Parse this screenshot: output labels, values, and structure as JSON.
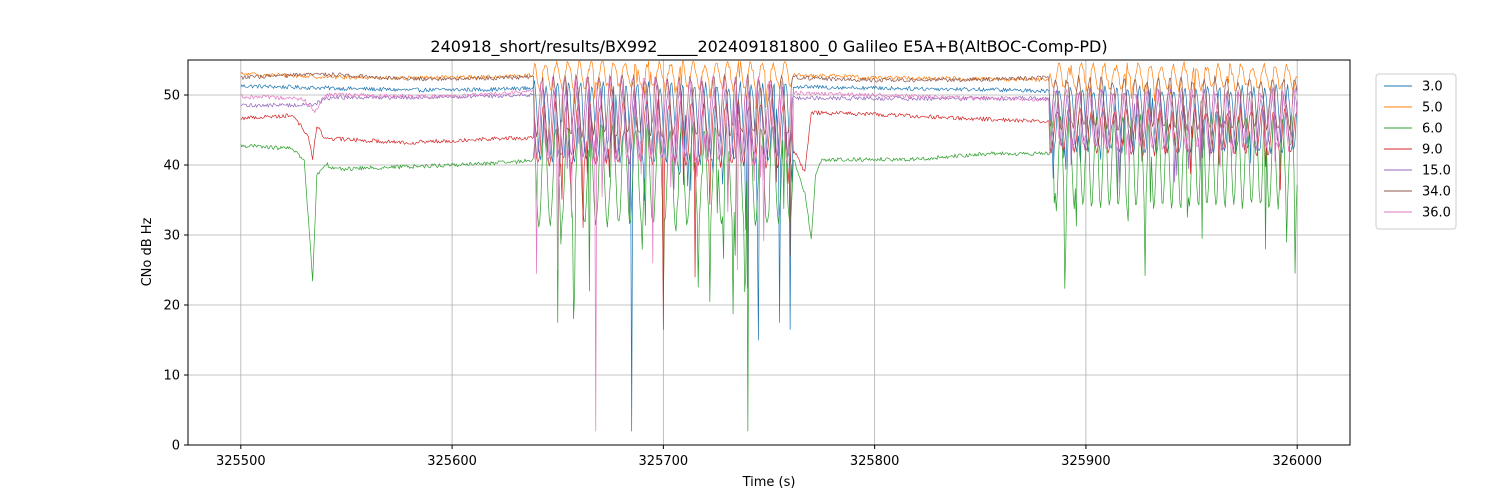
{
  "chart_data": {
    "type": "line",
    "title": "240918_short/results/BX992_____202409181800_0 Galileo E5A+B(AltBOC-Comp-PD)",
    "xlabel": "Time (s)",
    "ylabel": "CNo dB Hz",
    "xlim": [
      325475,
      326025
    ],
    "ylim": [
      0,
      55
    ],
    "xticks": [
      325500,
      325600,
      325700,
      325800,
      325900,
      326000
    ],
    "yticks": [
      0,
      10,
      20,
      30,
      40,
      50
    ],
    "grid": true,
    "legend_position": "upper-right-outside",
    "x_range": [
      325500,
      326000
    ],
    "series": [
      {
        "name": "3.0",
        "color": "#1f77b4",
        "base": [
          [
            325500,
            51.3
          ],
          [
            325540,
            51.0
          ],
          [
            325580,
            50.7
          ],
          [
            325620,
            50.8
          ],
          [
            325638,
            51.0
          ],
          [
            325760,
            51.2
          ],
          [
            325800,
            51.0
          ],
          [
            325850,
            50.8
          ],
          [
            325880,
            50.6
          ],
          [
            326000,
            50.6
          ]
        ],
        "osc": [
          [
            325639,
            325761,
            46.0,
            5.5,
            0.45,
            [
              [
                325685,
                2.0
              ],
              [
                325745,
                15.0
              ],
              [
                325755,
                17.5
              ],
              [
                325760,
                16.5
              ]
            ]
          ],
          [
            325883,
            326000,
            46.5,
            4.5,
            0.45,
            []
          ]
        ]
      },
      {
        "name": "5.0",
        "color": "#ff7f0e",
        "base": [
          [
            325500,
            53.0
          ],
          [
            325540,
            52.6
          ],
          [
            325580,
            52.4
          ],
          [
            325620,
            52.6
          ],
          [
            325638,
            52.8
          ],
          [
            325760,
            52.9
          ],
          [
            325800,
            52.5
          ],
          [
            325850,
            52.3
          ],
          [
            325880,
            52.2
          ],
          [
            326000,
            52.6
          ]
        ],
        "osc": [
          [
            325639,
            325761,
            52.8,
            1.8,
            0.45,
            []
          ],
          [
            325883,
            326000,
            52.6,
            1.6,
            0.45,
            []
          ]
        ]
      },
      {
        "name": "6.0",
        "color": "#2ca02c",
        "base": [
          [
            325500,
            42.8
          ],
          [
            325525,
            42.3
          ],
          [
            325530,
            40.5
          ],
          [
            325533,
            28.0
          ],
          [
            325534,
            23.7
          ],
          [
            325536,
            38.5
          ],
          [
            325540,
            40.2
          ],
          [
            325545,
            39.4
          ],
          [
            325600,
            40.0
          ],
          [
            325630,
            40.4
          ],
          [
            325638,
            40.8
          ],
          [
            325762,
            40.5
          ],
          [
            325767,
            36.0
          ],
          [
            325770,
            29.5
          ],
          [
            325772,
            38.5
          ],
          [
            325775,
            40.8
          ],
          [
            325820,
            40.8
          ],
          [
            325850,
            41.6
          ],
          [
            325882,
            41.6
          ],
          [
            326000,
            40.4
          ]
        ],
        "osc": [
          [
            325639,
            325761,
            38.5,
            7.0,
            0.45,
            [
              [
                325650,
                17.5
              ],
              [
                325665,
                22.0
              ],
              [
                325700,
                21.0
              ],
              [
                325722,
                20.5
              ],
              [
                325740,
                2.0
              ]
            ]
          ],
          [
            325883,
            326000,
            40.5,
            6.5,
            0.35,
            [
              [
                325920,
                32.0
              ],
              [
                325955,
                29.5
              ],
              [
                325985,
                28.0
              ],
              [
                325995,
                29.0
              ]
            ]
          ]
        ]
      },
      {
        "name": "9.0",
        "color": "#d62728",
        "base": [
          [
            325500,
            46.7
          ],
          [
            325525,
            47.1
          ],
          [
            325532,
            44.0
          ],
          [
            325534,
            41.0
          ],
          [
            325536,
            45.5
          ],
          [
            325540,
            43.8
          ],
          [
            325580,
            43.2
          ],
          [
            325620,
            43.8
          ],
          [
            325638,
            43.8
          ],
          [
            325762,
            42.0
          ],
          [
            325767,
            39.0
          ],
          [
            325770,
            47.5
          ],
          [
            325800,
            47.2
          ],
          [
            325850,
            46.6
          ],
          [
            325882,
            46.2
          ],
          [
            326000,
            46.7
          ]
        ],
        "osc": [
          [
            325639,
            325761,
            44.5,
            4.5,
            0.45,
            [
              [
                325700,
                16.5
              ],
              [
                325715,
                24.0
              ]
            ]
          ],
          [
            325883,
            326000,
            44.8,
            3.0,
            0.45,
            []
          ]
        ]
      },
      {
        "name": "15.0",
        "color": "#9467bd",
        "base": [
          [
            325500,
            48.5
          ],
          [
            325535,
            48.6
          ],
          [
            325540,
            49.6
          ],
          [
            325600,
            49.7
          ],
          [
            325638,
            50.0
          ],
          [
            325760,
            49.6
          ],
          [
            325800,
            49.5
          ],
          [
            325850,
            49.5
          ],
          [
            325882,
            49.5
          ],
          [
            326000,
            49.6
          ]
        ],
        "osc": [
          [
            325639,
            325761,
            46.0,
            5.0,
            0.45,
            [
              [
                325740,
                22.5
              ]
            ]
          ],
          [
            325883,
            326000,
            46.5,
            4.0,
            0.45,
            []
          ]
        ]
      },
      {
        "name": "34.0",
        "color": "#8c564b",
        "base": [
          [
            325500,
            52.5
          ],
          [
            325540,
            53.0
          ],
          [
            325580,
            52.3
          ],
          [
            325620,
            52.4
          ],
          [
            325638,
            52.6
          ],
          [
            325760,
            52.5
          ],
          [
            325800,
            52.1
          ],
          [
            325850,
            52.2
          ],
          [
            325882,
            52.5
          ],
          [
            326000,
            52.2
          ]
        ],
        "osc": [
          [
            325639,
            325761,
            48.5,
            4.0,
            0.45,
            [
              [
                325760,
                27.0
              ]
            ]
          ],
          [
            325883,
            326000,
            48.8,
            3.5,
            0.45,
            []
          ]
        ]
      },
      {
        "name": "36.0",
        "color": "#e377c2",
        "base": [
          [
            325500,
            49.8
          ],
          [
            325530,
            49.4
          ],
          [
            325535,
            47.5
          ],
          [
            325540,
            50.0
          ],
          [
            325600,
            49.8
          ],
          [
            325638,
            50.5
          ],
          [
            325760,
            50.3
          ],
          [
            325800,
            50.0
          ],
          [
            325850,
            49.5
          ],
          [
            325882,
            49.4
          ],
          [
            326000,
            49.8
          ]
        ],
        "osc": [
          [
            325639,
            325761,
            46.5,
            6.0,
            0.45,
            [
              [
                325640,
                24.5
              ],
              [
                325650,
                25.0
              ],
              [
                325668,
                2.0
              ],
              [
                325695,
                26.0
              ],
              [
                325735,
                25.0
              ]
            ]
          ],
          [
            325883,
            326000,
            46.5,
            4.0,
            0.45,
            []
          ]
        ]
      }
    ]
  }
}
